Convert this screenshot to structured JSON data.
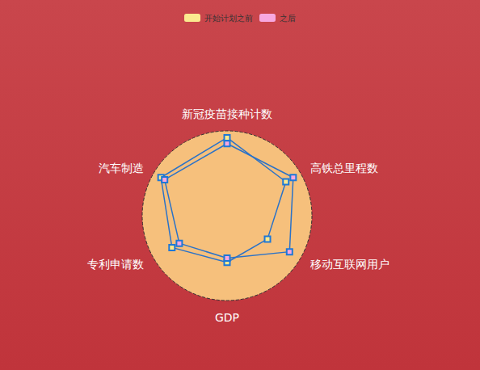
{
  "chart_data": {
    "type": "radar",
    "categories": [
      "新冠疫苗接种计数",
      "汽车制造",
      "专利申请数",
      "GDP",
      "移动互联网用户",
      "高铁总里程数"
    ],
    "ylim": [
      0,
      100
    ],
    "tick_labels": false,
    "legend": "top",
    "series": [
      {
        "name": "开始计划之前",
        "color": "#fbe98f",
        "marker": "square",
        "values": [
          92,
          90,
          75,
          55,
          55,
          80
        ]
      },
      {
        "name": "之后",
        "color": "#f7a8e0",
        "marker": "square",
        "values": [
          85,
          85,
          65,
          50,
          85,
          90
        ]
      }
    ]
  }
}
